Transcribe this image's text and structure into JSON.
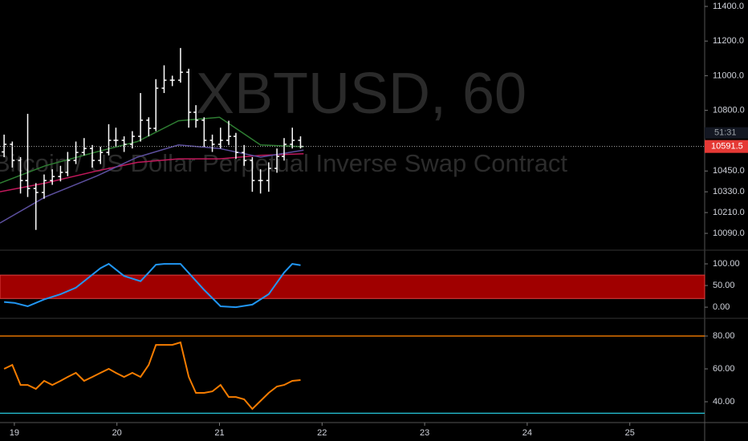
{
  "chart_data": [
    {
      "type": "ohlc",
      "title": "XBTUSD, 60",
      "subtitle": "Bitcoin / US Dollar Perpetual Inverse Swap Contract",
      "color": "#ffffff",
      "x": [
        18.9,
        18.98,
        19.06,
        19.13,
        19.21,
        19.29,
        19.37,
        19.45,
        19.52,
        19.6,
        19.68,
        19.76,
        19.84,
        19.92,
        19.99,
        20.07,
        20.15,
        20.23,
        20.31,
        20.38,
        20.46,
        20.54,
        20.62,
        20.7,
        20.77,
        20.85,
        20.93,
        21.01,
        21.09,
        21.16,
        21.24,
        21.32,
        21.4,
        21.48,
        21.56,
        21.63,
        21.71,
        21.79
      ],
      "open": [
        10560,
        10604,
        10511,
        10395,
        10349,
        10326,
        10395,
        10418,
        10442,
        10511,
        10557,
        10580,
        10511,
        10557,
        10627,
        10627,
        10604,
        10650,
        10743,
        10696,
        10928,
        10974,
        10974,
        11020,
        10789,
        10743,
        10627,
        10604,
        10627,
        10650,
        10557,
        10511,
        10395,
        10395,
        10465,
        10534,
        10604,
        10627
      ],
      "high": [
        10660,
        10620,
        10530,
        10780,
        10380,
        10430,
        10460,
        10480,
        10560,
        10620,
        10640,
        10600,
        10590,
        10720,
        10700,
        10650,
        10680,
        10900,
        10760,
        10980,
        11060,
        11000,
        11160,
        11040,
        10830,
        10760,
        10660,
        10700,
        10740,
        10670,
        10600,
        10530,
        10460,
        10500,
        10580,
        10640,
        10700,
        10650
      ],
      "low": [
        10530,
        10470,
        10320,
        10300,
        10110,
        10290,
        10370,
        10390,
        10420,
        10490,
        10540,
        10470,
        10490,
        10540,
        10590,
        10560,
        10580,
        10620,
        10650,
        10680,
        10900,
        10940,
        10960,
        10700,
        10700,
        10590,
        10560,
        10580,
        10600,
        10520,
        10480,
        10330,
        10320,
        10330,
        10440,
        10510,
        10580,
        10580
      ],
      "close": [
        10604,
        10511,
        10395,
        10349,
        10326,
        10395,
        10418,
        10442,
        10511,
        10557,
        10580,
        10511,
        10557,
        10627,
        10627,
        10604,
        10650,
        10743,
        10696,
        10928,
        10974,
        10974,
        11020,
        10789,
        10743,
        10627,
        10604,
        10627,
        10650,
        10557,
        10511,
        10395,
        10395,
        10465,
        10534,
        10604,
        10627,
        10592
      ],
      "series": [
        {
          "color": "#c2185b",
          "x": [
            18.86,
            19.3,
            19.8,
            20.2,
            20.6,
            21.0,
            21.4,
            21.82
          ],
          "values": [
            10330,
            10380,
            10450,
            10500,
            10520,
            10520,
            10540,
            10550
          ]
        },
        {
          "color": "#5c4f9e",
          "x": [
            18.86,
            19.3,
            19.8,
            20.2,
            20.6,
            21.0,
            21.4,
            21.82
          ],
          "values": [
            10150,
            10300,
            10420,
            10530,
            10600,
            10580,
            10530,
            10570
          ]
        },
        {
          "color": "#2e7d32",
          "x": [
            18.86,
            19.3,
            19.8,
            20.2,
            20.6,
            21.0,
            21.4,
            21.82
          ],
          "values": [
            10380,
            10480,
            10560,
            10620,
            10740,
            10760,
            10600,
            10590
          ]
        }
      ],
      "last_price": 10591.5,
      "last_price_color": "#e53935",
      "countdown": "51:31",
      "xlim": [
        18.86,
        25.73
      ],
      "ylim": [
        9993,
        11437
      ],
      "yticks": [
        {
          "value": 11400,
          "label": "11400.0"
        },
        {
          "value": 11200,
          "label": "11200.0"
        },
        {
          "value": 11000,
          "label": "11000.0"
        },
        {
          "value": 10800,
          "label": "10800.0"
        },
        {
          "value": 10450,
          "label": "10450.0"
        },
        {
          "value": 10330,
          "label": "10330.0"
        },
        {
          "value": 10210,
          "label": "10210.0"
        },
        {
          "value": 10090,
          "label": "10090.0"
        }
      ]
    },
    {
      "type": "line",
      "series": [
        {
          "color": "#2196f3",
          "x": [
            18.9,
            19.0,
            19.13,
            19.29,
            19.45,
            19.6,
            19.84,
            19.92,
            20.07,
            20.23,
            20.31,
            20.38,
            20.46,
            20.62,
            20.85,
            21.01,
            21.16,
            21.32,
            21.48,
            21.63,
            21.71,
            21.79
          ],
          "values": [
            12,
            10,
            2,
            18,
            30,
            45,
            90,
            100,
            72,
            60,
            80,
            98,
            100,
            100,
            40,
            2,
            0,
            6,
            30,
            80,
            100,
            97
          ]
        }
      ],
      "band": [
        20,
        74
      ],
      "band_color": "#a00000",
      "xlim": [
        18.86,
        25.73
      ],
      "ylim": [
        -22,
        126
      ],
      "yticks": [
        {
          "value": 100,
          "label": "100.00"
        },
        {
          "value": 50,
          "label": "50.00"
        },
        {
          "value": 0,
          "label": "0.00"
        }
      ]
    },
    {
      "type": "line",
      "series": [
        {
          "color": "#f57c00",
          "x": [
            18.9,
            18.98,
            19.06,
            19.13,
            19.21,
            19.29,
            19.37,
            19.45,
            19.52,
            19.6,
            19.68,
            19.76,
            19.84,
            19.92,
            19.99,
            20.07,
            20.15,
            20.23,
            20.31,
            20.38,
            20.46,
            20.54,
            20.62,
            20.7,
            20.77,
            20.85,
            20.93,
            21.01,
            21.09,
            21.16,
            21.24,
            21.32,
            21.4,
            21.48,
            21.56,
            21.63,
            21.71,
            21.79
          ],
          "values": [
            60,
            62.4,
            50.2,
            50.2,
            47.8,
            52.7,
            50.2,
            52.7,
            55.1,
            57.6,
            52.7,
            55.1,
            57.6,
            60,
            57.6,
            55.1,
            57.6,
            55.1,
            62.4,
            74.6,
            74.6,
            74.6,
            76.1,
            55.1,
            45.4,
            45.4,
            46.3,
            50.2,
            42.9,
            42.9,
            41.5,
            35.6,
            40.5,
            45.4,
            49.3,
            50.2,
            52.7,
            53.2
          ]
        }
      ],
      "levels": [
        {
          "value": 80,
          "color": "#f57c00"
        },
        {
          "value": 33,
          "color": "#26c6da"
        }
      ],
      "xlim": [
        18.86,
        25.73
      ],
      "ylim": [
        28.3,
        89.3
      ],
      "yticks": [
        {
          "value": 80,
          "label": "80.00"
        },
        {
          "value": 60,
          "label": "60.00"
        },
        {
          "value": 40,
          "label": "40.00"
        }
      ],
      "xticks": [
        19,
        20,
        21,
        22,
        23,
        24,
        25
      ]
    }
  ]
}
